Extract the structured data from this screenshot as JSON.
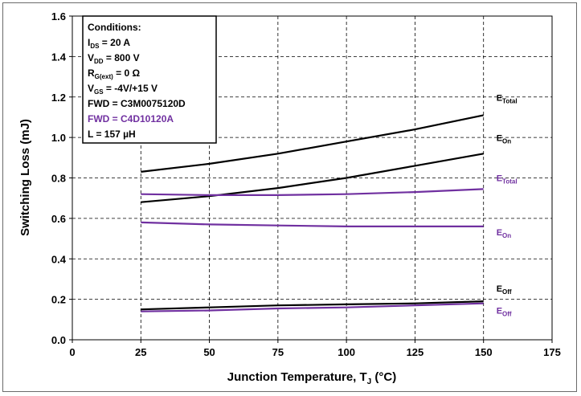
{
  "chart_data": {
    "type": "line",
    "xlabel": "Junction Temperature, T",
    "xlabel_sub": "J",
    "xlabel_suffix": " (°C)",
    "ylabel": "Switching Loss (mJ)",
    "xlim": [
      0,
      175
    ],
    "ylim": [
      0,
      1.6
    ],
    "x_ticks": [
      "0",
      "25",
      "50",
      "75",
      "100",
      "125",
      "150",
      "175"
    ],
    "y_ticks": [
      "0.0",
      "0.2",
      "0.4",
      "0.6",
      "0.8",
      "1.0",
      "1.2",
      "1.4",
      "1.6"
    ],
    "grid": true,
    "series": [
      {
        "label_main": "E",
        "label_sub": "Total",
        "color": "#000000",
        "x": [
          25,
          50,
          75,
          100,
          125,
          150
        ],
        "y": [
          0.83,
          0.87,
          0.92,
          0.98,
          1.04,
          1.11
        ]
      },
      {
        "label_main": "E",
        "label_sub": "On",
        "color": "#000000",
        "x": [
          25,
          50,
          75,
          100,
          125,
          150
        ],
        "y": [
          0.68,
          0.71,
          0.75,
          0.8,
          0.86,
          0.92
        ]
      },
      {
        "label_main": "E",
        "label_sub": "Total",
        "color": "#7030a0",
        "x": [
          25,
          50,
          75,
          100,
          125,
          150
        ],
        "y": [
          0.72,
          0.715,
          0.715,
          0.72,
          0.73,
          0.745
        ]
      },
      {
        "label_main": "E",
        "label_sub": "On",
        "color": "#7030a0",
        "x": [
          25,
          50,
          75,
          100,
          125,
          150
        ],
        "y": [
          0.58,
          0.57,
          0.565,
          0.56,
          0.56,
          0.56
        ]
      },
      {
        "label_main": "E",
        "label_sub": "Off",
        "color": "#000000",
        "x": [
          25,
          50,
          75,
          100,
          125,
          150
        ],
        "y": [
          0.15,
          0.16,
          0.17,
          0.175,
          0.18,
          0.19
        ]
      },
      {
        "label_main": "E",
        "label_sub": "Off",
        "color": "#7030a0",
        "x": [
          25,
          50,
          75,
          100,
          125,
          150
        ],
        "y": [
          0.14,
          0.145,
          0.155,
          0.16,
          0.17,
          0.18
        ]
      }
    ],
    "conditions": {
      "title": "Conditions:",
      "lines": [
        {
          "main": "I",
          "sub": "DS",
          "rest": " = 20 A",
          "color": "#000000"
        },
        {
          "main": "V",
          "sub": "DD",
          "rest": " = 800 V",
          "color": "#000000"
        },
        {
          "main": "R",
          "sub": "G(ext)",
          "rest": " = 0 Ω",
          "color": "#000000"
        },
        {
          "main": "V",
          "sub": "GS",
          "rest": " = -4V/+15 V",
          "color": "#000000"
        },
        {
          "main": "FWD = C3M0075120D",
          "sub": "",
          "rest": "",
          "color": "#000000"
        },
        {
          "main": "FWD = C4D10120A",
          "sub": "",
          "rest": "",
          "color": "#7030a0"
        },
        {
          "main": "L = 157 µH",
          "sub": "",
          "rest": "",
          "color": "#000000"
        }
      ]
    }
  }
}
